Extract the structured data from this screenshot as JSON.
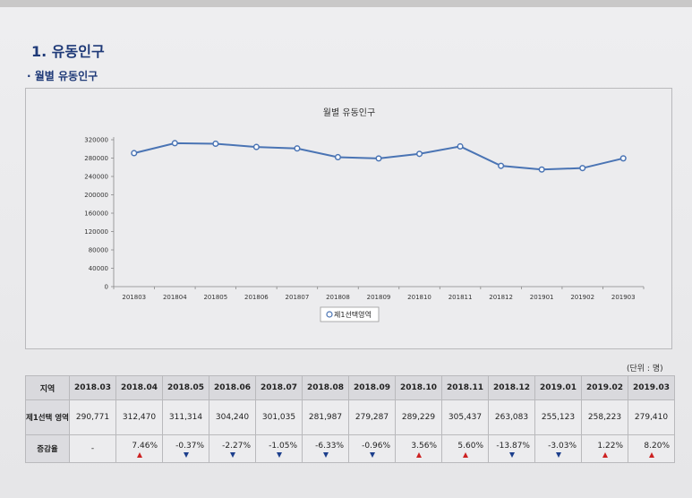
{
  "page_title": "1. 유동인구",
  "section_title": "· 월별 유동인구",
  "unit_note": "(단위 : 명)",
  "colors": {
    "line": "#4a74b4",
    "up": "#cc2222",
    "down": "#1c3f8c",
    "heading": "#1f3a78"
  },
  "chart_data": {
    "type": "line",
    "title": "월별 유동인구",
    "categories": [
      "201803",
      "201804",
      "201805",
      "201806",
      "201807",
      "201808",
      "201809",
      "201810",
      "201811",
      "201812",
      "201901",
      "201902",
      "201903"
    ],
    "series": [
      {
        "name": "제1선택영역",
        "values": [
          290771,
          312470,
          311314,
          304240,
          301035,
          281987,
          279287,
          289229,
          305437,
          263083,
          255123,
          258223,
          279410
        ]
      }
    ],
    "y_ticks": [
      0,
      40000,
      80000,
      120000,
      160000,
      200000,
      240000,
      280000,
      320000
    ],
    "ylim": [
      0,
      320000
    ],
    "grid": false,
    "legend_position": "bottom"
  },
  "table": {
    "header_label": "지역",
    "columns": [
      "2018.03",
      "2018.04",
      "2018.05",
      "2018.06",
      "2018.07",
      "2018.08",
      "2018.09",
      "2018.10",
      "2018.11",
      "2018.12",
      "2019.01",
      "2019.02",
      "2019.03"
    ],
    "region_row": {
      "label": "제1선택 영역",
      "values": [
        "290,771",
        "312,470",
        "311,314",
        "304,240",
        "301,035",
        "281,987",
        "279,287",
        "289,229",
        "305,437",
        "263,083",
        "255,123",
        "258,223",
        "279,410"
      ]
    },
    "rate_row": {
      "label": "증감율",
      "values": [
        "-",
        "7.46%",
        "-0.37%",
        "-2.27%",
        "-1.05%",
        "-6.33%",
        "-0.96%",
        "3.56%",
        "5.60%",
        "-13.87%",
        "-3.03%",
        "1.22%",
        "8.20%"
      ],
      "directions": [
        "none",
        "up",
        "down",
        "down",
        "down",
        "down",
        "down",
        "up",
        "up",
        "down",
        "down",
        "up",
        "up"
      ]
    }
  }
}
